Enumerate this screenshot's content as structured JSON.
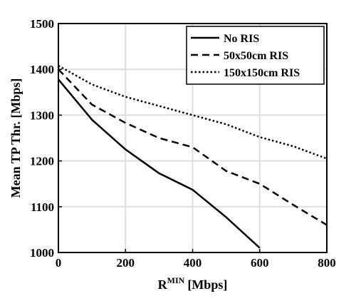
{
  "chart_data": {
    "type": "line",
    "title": "",
    "xlabel_main": "R",
    "xlabel_sup": "MIN",
    "xlabel_unit": "[Mbps]",
    "ylabel": "Mean TP Thr. [Mbps]",
    "xlim": [
      0,
      800
    ],
    "ylim": [
      1000,
      1500
    ],
    "xticks": [
      "0",
      "200",
      "400",
      "600",
      "800"
    ],
    "yticks": [
      "1000",
      "1100",
      "1200",
      "1300",
      "1400",
      "1500"
    ],
    "grid": true,
    "legend_position": "top-right",
    "series": [
      {
        "name": "No RIS",
        "dash": "solid",
        "x": [
          0,
          100,
          200,
          300,
          400,
          500,
          600
        ],
        "y": [
          1378,
          1290,
          1225,
          1173,
          1137,
          1077,
          1010
        ]
      },
      {
        "name": "50x50cm RIS",
        "dash": "dashed",
        "x": [
          0,
          100,
          200,
          300,
          400,
          500,
          600,
          700,
          800
        ],
        "y": [
          1400,
          1323,
          1283,
          1250,
          1230,
          1178,
          1150,
          1104,
          1060
        ]
      },
      {
        "name": "150x150cm RIS",
        "dash": "dotted",
        "x": [
          0,
          100,
          200,
          300,
          400,
          500,
          600,
          700,
          800
        ],
        "y": [
          1408,
          1367,
          1340,
          1320,
          1300,
          1280,
          1252,
          1232,
          1205
        ]
      }
    ]
  }
}
